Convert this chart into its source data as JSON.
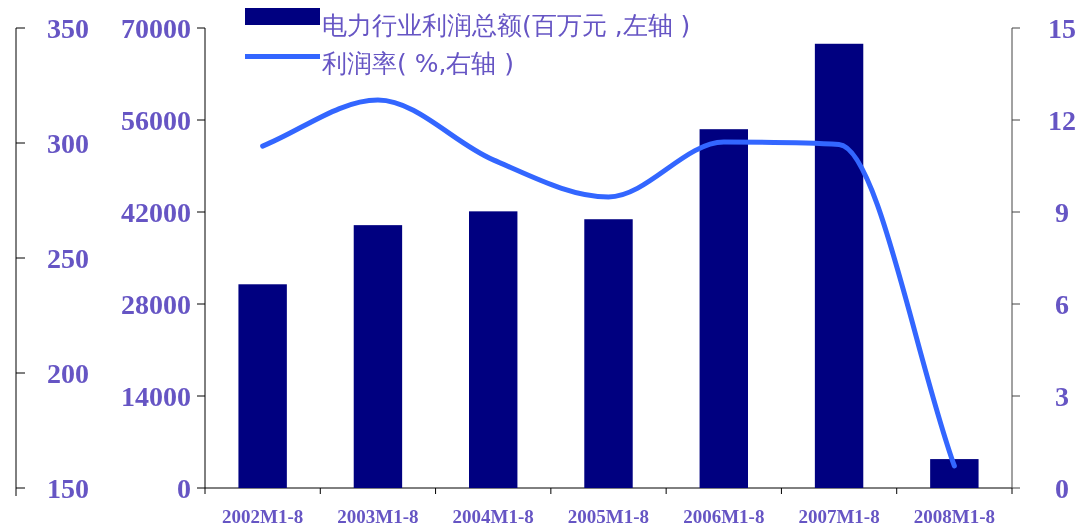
{
  "chart_data": {
    "type": "bar",
    "categories": [
      "2002M1-8",
      "2003M1-8",
      "2004M1-8",
      "2005M1-8",
      "2006M1-8",
      "2007M1-8",
      "2008M1-8"
    ],
    "series": [
      {
        "name": "电力行业利润总额(百万元 ,左轴 )",
        "color": "#000080",
        "values": [
          31000,
          40000,
          42100,
          40900,
          54600,
          67600,
          4400
        ]
      },
      {
        "name": "利润率( %,右轴 )",
        "type": "line",
        "axis": "y2",
        "color": "#3366ff",
        "line_style": "solid",
        "values": [
          11.15,
          12.65,
          10.7,
          9.49,
          11.28,
          11.2,
          0.72
        ]
      }
    ],
    "ylim": [
      0,
      70000
    ],
    "yticks": [
      0,
      14000,
      28000,
      42000,
      56000,
      70000
    ],
    "y2lim": [
      0,
      15
    ],
    "y2ticks": [
      0,
      3,
      6,
      9,
      12,
      15
    ],
    "y3lim": [
      150,
      350
    ],
    "y3ticks": [
      150,
      200,
      250,
      300,
      350
    ],
    "legend": "top",
    "grid": false
  }
}
